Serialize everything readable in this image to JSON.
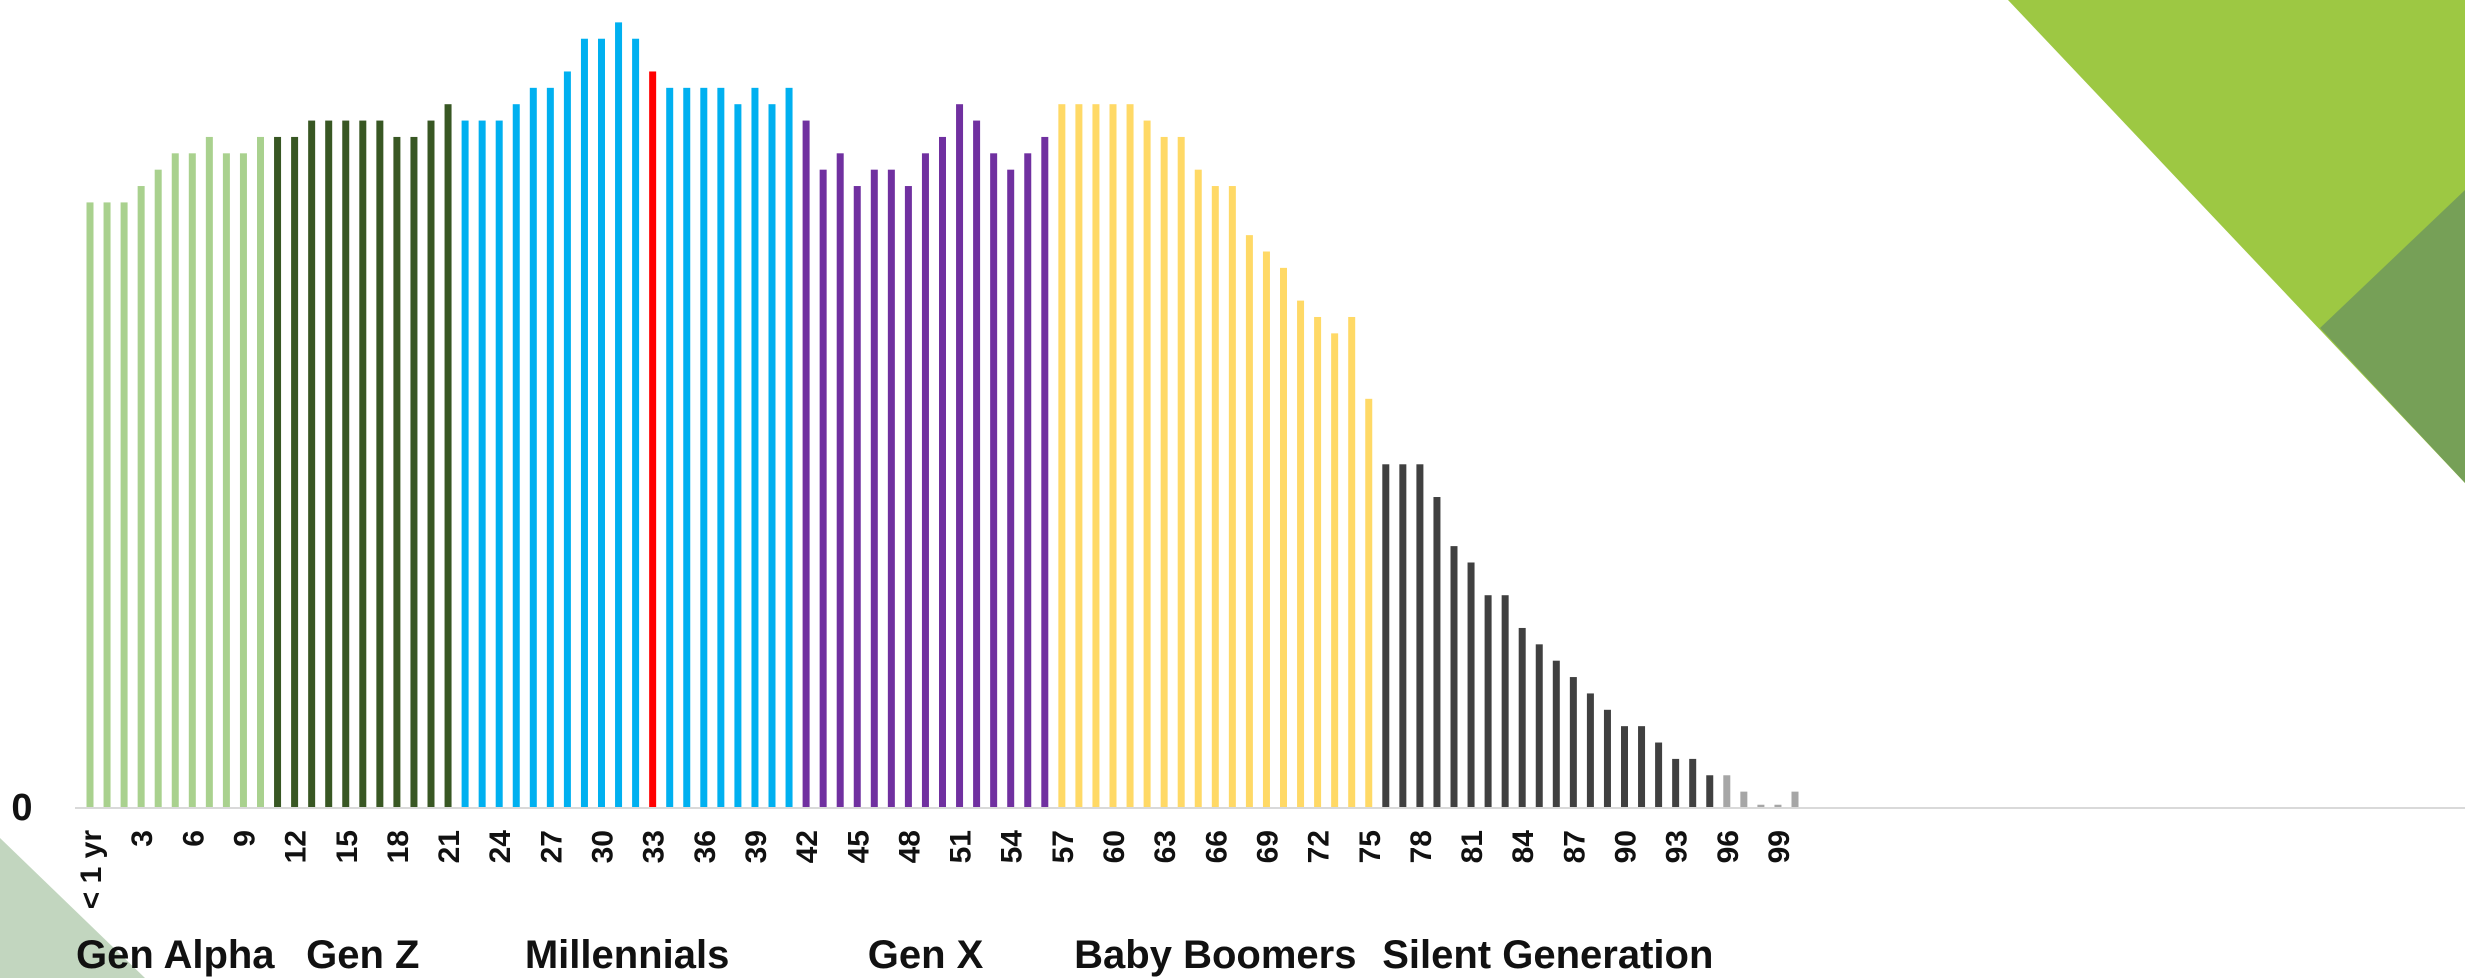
{
  "chart_data": {
    "type": "bar",
    "title": "",
    "xlabel": "",
    "ylabel": "",
    "y_tick_labels": [
      "0"
    ],
    "ylim": [
      0,
      49
    ],
    "grid": false,
    "legend": "none",
    "x_tick_labels": [
      "< 1 yr",
      "3",
      "6",
      "9",
      "12",
      "15",
      "18",
      "21",
      "24",
      "27",
      "30",
      "33",
      "36",
      "39",
      "42",
      "45",
      "48",
      "51",
      "54",
      "57",
      "60",
      "63",
      "66",
      "69",
      "72",
      "75",
      "78",
      "81",
      "84",
      "87",
      "90",
      "93",
      "96",
      "99"
    ],
    "x_tick_ages": [
      0,
      3,
      6,
      9,
      12,
      15,
      18,
      21,
      24,
      27,
      30,
      33,
      36,
      39,
      42,
      45,
      48,
      51,
      54,
      57,
      60,
      63,
      66,
      69,
      72,
      75,
      78,
      81,
      84,
      87,
      90,
      93,
      96,
      99
    ],
    "ages": [
      0,
      1,
      2,
      3,
      4,
      5,
      6,
      7,
      8,
      9,
      10,
      11,
      12,
      13,
      14,
      15,
      16,
      17,
      18,
      19,
      20,
      21,
      22,
      23,
      24,
      25,
      26,
      27,
      28,
      29,
      30,
      31,
      32,
      33,
      34,
      35,
      36,
      37,
      38,
      39,
      40,
      41,
      42,
      43,
      44,
      45,
      46,
      47,
      48,
      49,
      50,
      51,
      52,
      53,
      54,
      55,
      56,
      57,
      58,
      59,
      60,
      61,
      62,
      63,
      64,
      65,
      66,
      67,
      68,
      69,
      70,
      71,
      72,
      73,
      74,
      75,
      76,
      77,
      78,
      79,
      80,
      81,
      82,
      83,
      84,
      85,
      86,
      87,
      88,
      89,
      90,
      91,
      92,
      93,
      94,
      95,
      96,
      97,
      98,
      99,
      100
    ],
    "values": [
      37,
      37,
      37,
      38,
      39,
      40,
      40,
      41,
      40,
      40,
      41,
      41,
      41,
      42,
      42,
      42,
      42,
      42,
      41,
      41,
      42,
      43,
      42,
      42,
      42,
      43,
      44,
      44,
      45,
      47,
      47,
      48,
      47,
      45,
      44,
      44,
      44,
      44,
      43,
      44,
      43,
      44,
      42,
      39,
      40,
      38,
      39,
      39,
      38,
      40,
      41,
      43,
      42,
      40,
      39,
      40,
      41,
      43,
      43,
      43,
      43,
      43,
      42,
      41,
      41,
      39,
      38,
      38,
      35,
      34,
      33,
      31,
      30,
      29,
      30,
      25,
      21,
      21,
      21,
      19,
      16,
      15,
      13,
      13,
      11,
      10,
      9,
      8,
      7,
      6,
      5,
      5,
      4,
      3,
      3,
      2,
      2,
      1,
      0.2,
      0.2,
      1
    ],
    "highlight_age": 33,
    "generations": [
      {
        "name": "Gen Alpha",
        "from": 0,
        "to": 10,
        "color": "#a9d18e"
      },
      {
        "name": "Gen Z",
        "from": 11,
        "to": 21,
        "color": "#385723"
      },
      {
        "name": "Millennials",
        "from": 22,
        "to": 41,
        "color": "#00b0f0"
      },
      {
        "name": "Gen X",
        "from": 42,
        "to": 56,
        "color": "#7030a0"
      },
      {
        "name": "Baby Boomers",
        "from": 57,
        "to": 75,
        "color": "#ffd966"
      },
      {
        "name": "Silent Generation",
        "from": 76,
        "to": 95,
        "color": "#404040"
      },
      {
        "name": "",
        "from": 96,
        "to": 100,
        "color": "#a6a6a6"
      }
    ],
    "highlight_color": "#ff0000"
  },
  "decor": {
    "triangle_light_color": "#9dc843",
    "triangle_dark_color": "#76a057",
    "corner_photo_color": "#8fb58a"
  }
}
